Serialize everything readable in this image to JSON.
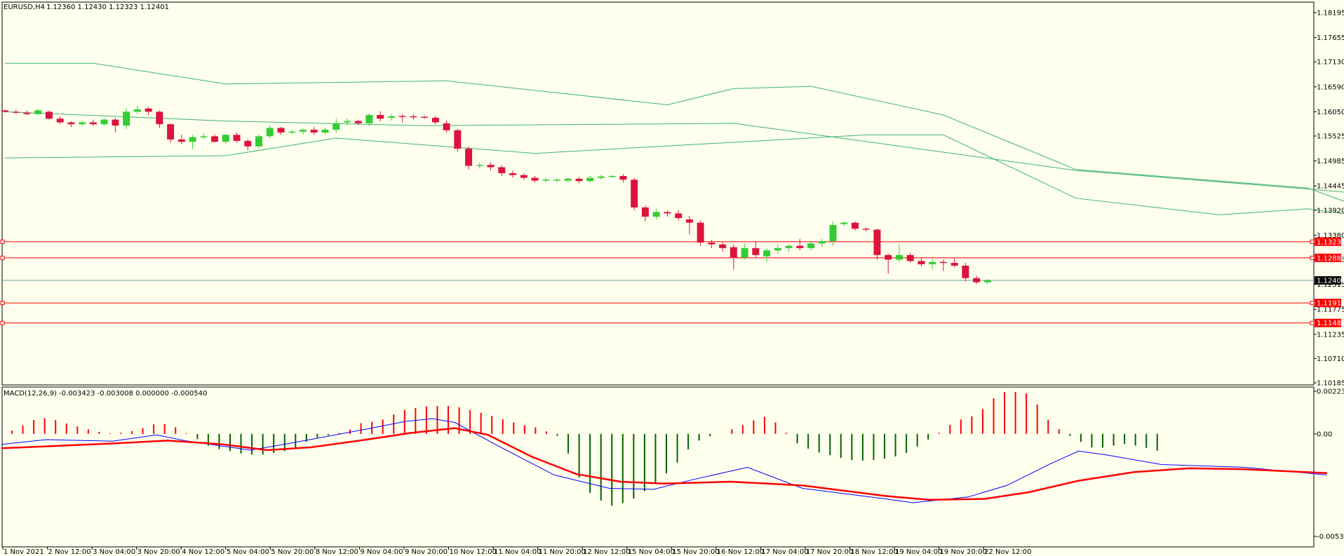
{
  "header": {
    "symbol_label": "EURUSD,H4",
    "ohlc_text": "1.12360 1.12430 1.12323 1.12401"
  },
  "macd_header": {
    "label": "MACD(12,26,9) -0.003423 -0.003008 0.000000 -0.000540"
  },
  "colors": {
    "background": "#ffffee",
    "frame": "#000000",
    "bull": "#32cd32",
    "bear": "#dc143c",
    "bands": "#3cb371",
    "levels": "#ff0000",
    "current_price_line": "#5f9ea0",
    "macd_hist_pos": "#ff0000",
    "macd_hist_neg": "#006400",
    "macd_line": "#0000ff",
    "signal_line": "#ff0000"
  },
  "chart_data": [
    {
      "type": "candlestick",
      "title": "EURUSD,H4",
      "ylim": [
        1.10185,
        1.18195
      ],
      "price_axis_ticks": [
        "1.18195",
        "1.17655",
        "1.17130",
        "1.16590",
        "1.16050",
        "1.15525",
        "1.14985",
        "1.14445",
        "1.13920",
        "1.13380",
        "1.12855",
        "1.12315",
        "1.11775",
        "1.11235",
        "1.10710",
        "1.10185"
      ],
      "time_axis_labels": [
        "1 Nov 2021",
        "2 Nov 12:00",
        "3 Nov 04:00",
        "3 Nov 20:00",
        "4 Nov 12:00",
        "5 Nov 04:00",
        "5 Nov 20:00",
        "8 Nov 12:00",
        "9 Nov 04:00",
        "9 Nov 20:00",
        "10 Nov 12:00",
        "11 Nov 04:00",
        "11 Nov 20:00",
        "12 Nov 12:00",
        "15 Nov 04:00",
        "15 Nov 20:00",
        "16 Nov 12:00",
        "17 Nov 04:00",
        "17 Nov 20:00",
        "18 Nov 12:00",
        "19 Nov 04:00",
        "19 Nov 20:00",
        "22 Nov 12:00"
      ],
      "horizontal_levels": [
        "1.13238",
        "1.12889",
        "1.11913",
        "1.11480"
      ],
      "current_price": "1.12401",
      "candles_ohlc": [
        [
          1.1608,
          1.161,
          1.1603,
          1.1605
        ],
        [
          1.1605,
          1.161,
          1.16,
          1.1603
        ],
        [
          1.1603,
          1.1608,
          1.1598,
          1.16
        ],
        [
          1.16,
          1.1612,
          1.1598,
          1.1608
        ],
        [
          1.1605,
          1.1608,
          1.1588,
          1.159
        ],
        [
          1.159,
          1.1595,
          1.1578,
          1.1582
        ],
        [
          1.1582,
          1.1585,
          1.1572,
          1.1578
        ],
        [
          1.1578,
          1.1586,
          1.1574,
          1.1582
        ],
        [
          1.1582,
          1.1588,
          1.1574,
          1.1578
        ],
        [
          1.1578,
          1.159,
          1.1575,
          1.1588
        ],
        [
          1.1588,
          1.1592,
          1.156,
          1.1575
        ],
        [
          1.1575,
          1.1612,
          1.1568,
          1.1605
        ],
        [
          1.1605,
          1.1618,
          1.16,
          1.161
        ],
        [
          1.1612,
          1.1615,
          1.1598,
          1.1605
        ],
        [
          1.1605,
          1.1608,
          1.157,
          1.1578
        ],
        [
          1.1578,
          1.158,
          1.1538,
          1.1545
        ],
        [
          1.1545,
          1.1555,
          1.1535,
          1.154
        ],
        [
          1.154,
          1.1555,
          1.1525,
          1.155
        ],
        [
          1.155,
          1.1558,
          1.1545,
          1.1552
        ],
        [
          1.1552,
          1.1556,
          1.1538,
          1.154
        ],
        [
          1.154,
          1.1558,
          1.1535,
          1.1555
        ],
        [
          1.1555,
          1.156,
          1.1538,
          1.1542
        ],
        [
          1.1542,
          1.1546,
          1.1522,
          1.153
        ],
        [
          1.153,
          1.1556,
          1.1526,
          1.1552
        ],
        [
          1.1552,
          1.1576,
          1.1548,
          1.157
        ],
        [
          1.157,
          1.1572,
          1.1555,
          1.156
        ],
        [
          1.156,
          1.1566,
          1.1556,
          1.1562
        ],
        [
          1.1562,
          1.1568,
          1.1556,
          1.1566
        ],
        [
          1.1566,
          1.1572,
          1.1555,
          1.156
        ],
        [
          1.156,
          1.157,
          1.1556,
          1.1566
        ],
        [
          1.1566,
          1.159,
          1.156,
          1.158
        ],
        [
          1.1582,
          1.159,
          1.1576,
          1.1585
        ],
        [
          1.1585,
          1.1588,
          1.1576,
          1.158
        ],
        [
          1.158,
          1.1602,
          1.1574,
          1.1598
        ],
        [
          1.1598,
          1.1606,
          1.1584,
          1.159
        ],
        [
          1.1592,
          1.16,
          1.1586,
          1.1595
        ],
        [
          1.1596,
          1.16,
          1.1582,
          1.1595
        ],
        [
          1.1595,
          1.16,
          1.1588,
          1.1594
        ],
        [
          1.1594,
          1.1597,
          1.159,
          1.1592
        ],
        [
          1.1592,
          1.1596,
          1.1578,
          1.1582
        ],
        [
          1.158,
          1.1586,
          1.156,
          1.1565
        ],
        [
          1.1565,
          1.1568,
          1.1518,
          1.1525
        ],
        [
          1.1525,
          1.153,
          1.148,
          1.1488
        ],
        [
          1.1488,
          1.1495,
          1.1482,
          1.149
        ],
        [
          1.149,
          1.1496,
          1.1478,
          1.1485
        ],
        [
          1.1485,
          1.149,
          1.1466,
          1.1472
        ],
        [
          1.1472,
          1.1478,
          1.1462,
          1.1468
        ],
        [
          1.1468,
          1.1472,
          1.1458,
          1.1462
        ],
        [
          1.1462,
          1.1466,
          1.1452,
          1.1456
        ],
        [
          1.1456,
          1.1462,
          1.1452,
          1.1458
        ],
        [
          1.1456,
          1.1461,
          1.1452,
          1.1458
        ],
        [
          1.1456,
          1.1462,
          1.1452,
          1.146
        ],
        [
          1.146,
          1.1464,
          1.145,
          1.1455
        ],
        [
          1.1455,
          1.1466,
          1.1452,
          1.1462
        ],
        [
          1.1462,
          1.1468,
          1.1458,
          1.1465
        ],
        [
          1.1465,
          1.1468,
          1.1462,
          1.1466
        ],
        [
          1.1466,
          1.147,
          1.1452,
          1.1458
        ],
        [
          1.1458,
          1.1462,
          1.1392,
          1.1398
        ],
        [
          1.1398,
          1.1402,
          1.1368,
          1.1378
        ],
        [
          1.1378,
          1.1395,
          1.1372,
          1.1388
        ],
        [
          1.1388,
          1.1392,
          1.1378,
          1.1385
        ],
        [
          1.1385,
          1.1392,
          1.137,
          1.1375
        ],
        [
          1.1372,
          1.138,
          1.134,
          1.1365
        ],
        [
          1.1365,
          1.137,
          1.1315,
          1.1322
        ],
        [
          1.1322,
          1.1328,
          1.131,
          1.1318
        ],
        [
          1.1318,
          1.1324,
          1.1302,
          1.131
        ],
        [
          1.1312,
          1.1318,
          1.1264,
          1.129
        ],
        [
          1.129,
          1.132,
          1.1285,
          1.131
        ],
        [
          1.131,
          1.1325,
          1.129,
          1.1295
        ],
        [
          1.1292,
          1.131,
          1.128,
          1.1305
        ],
        [
          1.1305,
          1.1318,
          1.1298,
          1.131
        ],
        [
          1.131,
          1.1318,
          1.1302,
          1.1315
        ],
        [
          1.1315,
          1.133,
          1.1305,
          1.131
        ],
        [
          1.131,
          1.1326,
          1.1305,
          1.132
        ],
        [
          1.132,
          1.133,
          1.1312,
          1.1325
        ],
        [
          1.1325,
          1.1368,
          1.1315,
          1.136
        ],
        [
          1.1362,
          1.1368,
          1.1358,
          1.1365
        ],
        [
          1.1365,
          1.1368,
          1.1348,
          1.1352
        ],
        [
          1.1352,
          1.1355,
          1.1346,
          1.135
        ],
        [
          1.135,
          1.1352,
          1.1285,
          1.1295
        ],
        [
          1.1295,
          1.1298,
          1.1255,
          1.1285
        ],
        [
          1.1285,
          1.1318,
          1.128,
          1.1295
        ],
        [
          1.1295,
          1.13,
          1.1278,
          1.1282
        ],
        [
          1.1282,
          1.129,
          1.127,
          1.1275
        ],
        [
          1.1275,
          1.1286,
          1.1264,
          1.128
        ],
        [
          1.128,
          1.1285,
          1.126,
          1.1278
        ],
        [
          1.1278,
          1.1288,
          1.1268,
          1.1272
        ],
        [
          1.1272,
          1.1278,
          1.1238,
          1.1245
        ],
        [
          1.1245,
          1.125,
          1.1232,
          1.1236
        ],
        [
          1.1236,
          1.1243,
          1.1232,
          1.124
        ]
      ],
      "bollinger_upper": [
        [
          0,
          1.171
        ],
        [
          8,
          1.171
        ],
        [
          20,
          1.1665
        ],
        [
          40,
          1.1672
        ],
        [
          60,
          1.162
        ],
        [
          66,
          1.1655
        ],
        [
          73,
          1.166
        ],
        [
          85,
          1.1598
        ],
        [
          97,
          1.148
        ],
        [
          118,
          1.144
        ],
        [
          124,
          1.1388
        ],
        [
          160,
          1.1375
        ],
        [
          175,
          1.1375
        ],
        [
          196,
          1.1382
        ]
      ],
      "bollinger_middle": [
        [
          0,
          1.1605
        ],
        [
          20,
          1.1585
        ],
        [
          38,
          1.1575
        ],
        [
          66,
          1.158
        ],
        [
          97,
          1.1478
        ],
        [
          118,
          1.1438
        ],
        [
          150,
          1.1372
        ],
        [
          160,
          1.1335
        ],
        [
          175,
          1.1325
        ],
        [
          196,
          1.1298
        ]
      ],
      "bollinger_lower": [
        [
          0,
          1.1505
        ],
        [
          20,
          1.151
        ],
        [
          30,
          1.1548
        ],
        [
          48,
          1.1515
        ],
        [
          78,
          1.1555
        ],
        [
          85,
          1.1555
        ],
        [
          97,
          1.1418
        ],
        [
          110,
          1.1382
        ],
        [
          118,
          1.1395
        ],
        [
          140,
          1.1325
        ],
        [
          150,
          1.1252
        ],
        [
          160,
          1.125
        ],
        [
          170,
          1.1285
        ],
        [
          182,
          1.1262
        ],
        [
          196,
          1.1225
        ]
      ]
    },
    {
      "type": "macd",
      "title": "MACD(12,26,9)",
      "ylim": [
        -0.005363,
        0.002233
      ],
      "axis_ticks": [
        "0.002233",
        "0.00",
        "-0.005363"
      ],
      "histogram_values": [
        0.00018,
        0.00044,
        0.00073,
        0.00082,
        0.00072,
        0.00054,
        0.00039,
        0.00024,
        0.00011,
        3e-05,
        6e-05,
        0.00015,
        0.0003,
        0.0005,
        0.00052,
        0.00035,
        4e-05,
        -0.00028,
        -0.00062,
        -0.0008,
        -0.0009,
        -0.00102,
        -0.00108,
        -0.00108,
        -0.001,
        -0.0009,
        -0.00071,
        -0.00041,
        -0.0002,
        -7e-05,
        5e-05,
        0.00023,
        0.00056,
        0.00063,
        0.00075,
        0.00102,
        0.00126,
        0.00136,
        0.00144,
        0.00146,
        0.00146,
        0.00139,
        0.00125,
        0.0011,
        0.00094,
        0.00076,
        0.0006,
        0.00045,
        0.00035,
        0.00013,
        -0.0001,
        -0.00103,
        -0.00229,
        -0.00309,
        -0.00349,
        -0.00376,
        -0.00362,
        -0.00338,
        -0.00299,
        -0.00259,
        -0.00207,
        -0.0015,
        -0.00082,
        -0.00035,
        -0.00012,
        0.0,
        0.00024,
        0.00046,
        0.00071,
        0.00089,
        0.0006,
        6e-05,
        -0.00049,
        -0.00077,
        -0.00097,
        -0.00111,
        -0.00126,
        -0.00137,
        -0.0014,
        -0.00136,
        -0.0013,
        -0.00118,
        -0.001,
        -0.00066,
        -0.0003,
        6e-05,
        0.00047,
        0.00076,
        0.00092,
        0.0013,
        0.00186,
        0.00219,
        0.0022,
        0.00212,
        0.00154,
        0.00074,
        0.00025,
        -0.0001,
        -0.00042,
        -0.00071,
        -0.00072,
        -0.00061,
        -0.00052,
        -0.00061,
        -0.00073,
        -0.00088
      ],
      "macd_line": [
        [
          0,
          -0.00055
        ],
        [
          8,
          -0.0003
        ],
        [
          20,
          -0.00038
        ],
        [
          28,
          -5e-05
        ],
        [
          33,
          -0.00035
        ],
        [
          45,
          -0.00085
        ],
        [
          52,
          -0.0005
        ],
        [
          66,
          0.00025
        ],
        [
          73,
          0.00065
        ],
        [
          78,
          0.0008
        ],
        [
          82,
          0.0006
        ],
        [
          90,
          -0.00065
        ],
        [
          100,
          -0.00215
        ],
        [
          110,
          -0.00285
        ],
        [
          118,
          -0.0029
        ],
        [
          125,
          -0.0024
        ],
        [
          135,
          -0.00175
        ],
        [
          145,
          -0.00285
        ],
        [
          160,
          -0.0034
        ],
        [
          165,
          -0.0036
        ],
        [
          175,
          -0.0033
        ],
        [
          182,
          -0.0027
        ],
        [
          190,
          -0.00155
        ],
        [
          195,
          -0.0009
        ],
        [
          200,
          -0.0011
        ],
        [
          210,
          -0.0016
        ],
        [
          225,
          -0.00175
        ],
        [
          240,
          -0.00215
        ]
      ],
      "signal_line": [
        [
          0,
          -0.00075
        ],
        [
          8,
          -0.00065
        ],
        [
          20,
          -0.0005
        ],
        [
          30,
          -0.00035
        ],
        [
          40,
          -0.00055
        ],
        [
          48,
          -0.00085
        ],
        [
          56,
          -0.0007
        ],
        [
          66,
          -0.0003
        ],
        [
          74,
          5e-05
        ],
        [
          82,
          0.0003
        ],
        [
          88,
          -5e-05
        ],
        [
          96,
          -0.0012
        ],
        [
          104,
          -0.0021
        ],
        [
          112,
          -0.0025
        ],
        [
          120,
          -0.0026
        ],
        [
          132,
          -0.0025
        ],
        [
          145,
          -0.0027
        ],
        [
          160,
          -0.00325
        ],
        [
          168,
          -0.00345
        ],
        [
          178,
          -0.0034
        ],
        [
          186,
          -0.00305
        ],
        [
          195,
          -0.00245
        ],
        [
          205,
          -0.002
        ],
        [
          215,
          -0.0018
        ],
        [
          225,
          -0.00185
        ],
        [
          240,
          -0.00205
        ]
      ]
    }
  ]
}
